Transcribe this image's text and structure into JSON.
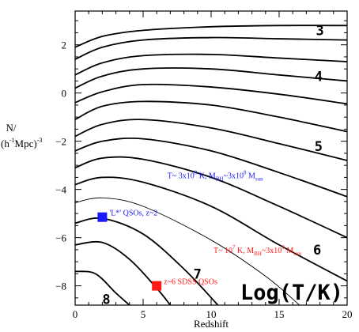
{
  "chart_data": {
    "type": "line",
    "xlabel": "Redshift",
    "ylabel": "N/\n(h⁻³Mpc)⁻³",
    "ylabel_lines": [
      "N/",
      "(h",
      "-1",
      "Mpc)",
      "-3"
    ],
    "xlim": [
      0,
      20
    ],
    "ylim": [
      -8.8,
      3.4
    ],
    "x_ticks": [
      0,
      5,
      10,
      15,
      20
    ],
    "y_ticks": [
      2,
      0,
      -2,
      -4,
      -6,
      -8
    ],
    "x_tick_labels": [
      "0",
      "5",
      "10",
      "15",
      "20"
    ],
    "y_tick_labels": [
      "2",
      "0",
      "−2",
      "−4",
      "−6",
      "−8"
    ],
    "legend_title": "Log(T/K)",
    "series": [
      {
        "points": [
          [
            0,
            1.9
          ],
          [
            2,
            2.35
          ],
          [
            5,
            2.6
          ],
          [
            10,
            2.75
          ],
          [
            15,
            2.8
          ],
          [
            20,
            2.8
          ]
        ]
      },
      {
        "points": [
          [
            0,
            1.4
          ],
          [
            2,
            1.9
          ],
          [
            5,
            2.2
          ],
          [
            10,
            2.3
          ],
          [
            15,
            2.25
          ],
          [
            20,
            2.2
          ]
        ]
      },
      {
        "points": [
          [
            0,
            0.75
          ],
          [
            2,
            1.25
          ],
          [
            5,
            1.55
          ],
          [
            10,
            1.6
          ],
          [
            15,
            1.45
          ],
          [
            20,
            1.3
          ]
        ]
      },
      {
        "points": [
          [
            0,
            0.2
          ],
          [
            2,
            0.7
          ],
          [
            5,
            1.0
          ],
          [
            10,
            1.0
          ],
          [
            15,
            0.75
          ],
          [
            20,
            0.5
          ]
        ]
      },
      {
        "points": [
          [
            0,
            -0.4
          ],
          [
            2,
            0.05
          ],
          [
            5,
            0.35
          ],
          [
            10,
            0.25
          ],
          [
            15,
            -0.05
          ],
          [
            20,
            -0.45
          ]
        ]
      },
      {
        "points": [
          [
            0,
            -1.1
          ],
          [
            2,
            -0.55
          ],
          [
            5,
            -0.35
          ],
          [
            10,
            -0.5
          ],
          [
            15,
            -1.0
          ],
          [
            20,
            -1.6
          ]
        ]
      },
      {
        "points": [
          [
            0,
            -1.8
          ],
          [
            2,
            -1.3
          ],
          [
            5,
            -1.1
          ],
          [
            10,
            -1.45
          ],
          [
            15,
            -2.1
          ],
          [
            20,
            -2.8
          ]
        ]
      },
      {
        "points": [
          [
            0,
            -2.4
          ],
          [
            2,
            -2.0
          ],
          [
            5,
            -1.9
          ],
          [
            10,
            -2.4
          ],
          [
            15,
            -3.3
          ],
          [
            20,
            -4.3
          ]
        ]
      },
      {
        "points": [
          [
            0,
            -3.1
          ],
          [
            2,
            -2.7
          ],
          [
            5,
            -2.75
          ],
          [
            10,
            -3.5
          ],
          [
            15,
            -4.7
          ],
          [
            20,
            -6.0
          ]
        ]
      },
      {
        "points": [
          [
            0,
            -3.8
          ],
          [
            2,
            -3.5
          ],
          [
            5,
            -3.7
          ],
          [
            10,
            -4.7
          ],
          [
            15,
            -6.3
          ],
          [
            20,
            -7.8
          ]
        ]
      },
      {
        "points": [
          [
            0,
            -4.55
          ],
          [
            2,
            -4.35
          ],
          [
            5,
            -4.7
          ],
          [
            10,
            -6.1
          ],
          [
            14,
            -7.6
          ],
          [
            16.5,
            -8.8
          ]
        ]
      },
      {
        "points": [
          [
            0,
            -5.4
          ],
          [
            2,
            -5.2
          ],
          [
            5,
            -5.85
          ],
          [
            8,
            -7.3
          ],
          [
            10.5,
            -8.8
          ]
        ]
      },
      {
        "points": [
          [
            0,
            -6.3
          ],
          [
            2,
            -6.2
          ],
          [
            4,
            -6.9
          ],
          [
            6,
            -8.1
          ],
          [
            7,
            -8.8
          ]
        ]
      },
      {
        "points": [
          [
            0,
            -7.4
          ],
          [
            1.5,
            -7.5
          ],
          [
            3,
            -8.3
          ],
          [
            4,
            -8.8
          ]
        ]
      }
    ],
    "curve_labels": [
      {
        "text": "3",
        "x": 18.0,
        "y": 2.6
      },
      {
        "text": "4",
        "x": 17.9,
        "y": 0.7
      },
      {
        "text": "5",
        "x": 17.9,
        "y": -2.2
      },
      {
        "text": "6",
        "x": 17.8,
        "y": -6.5
      },
      {
        "text": "7",
        "x": 9.0,
        "y": -7.5
      },
      {
        "text": "8",
        "x": 2.3,
        "y": -8.55
      }
    ],
    "annotations": [
      {
        "id": "blue-note",
        "main": "T~ 3x10",
        "sup1": "8",
        "mid": " K, M",
        "sub1": "BH",
        "mid2": "~3x10",
        "sup2": "8",
        "end": " M",
        "sub2": "sun",
        "color": "#1a1aff",
        "x": 10.3,
        "y": -3.4
      },
      {
        "id": "red-note",
        "main": "T~ 10",
        "sup1": "7",
        "mid": " K, M",
        "sub1": "BH",
        "mid2": "~3x10",
        "sup2": "9",
        "end": " M",
        "sub2": "sun",
        "color": "#ff1a1a",
        "x": 13.4,
        "y": -6.5
      }
    ],
    "points": [
      {
        "label": "'L*' QSOs, z~2",
        "x": 2.0,
        "y": -5.15,
        "color": "#1a1aff"
      },
      {
        "label": "z~6 SDSS QSOs",
        "x": 6.0,
        "y": -8.0,
        "color": "#ff1a1a"
      }
    ],
    "grid": false
  }
}
